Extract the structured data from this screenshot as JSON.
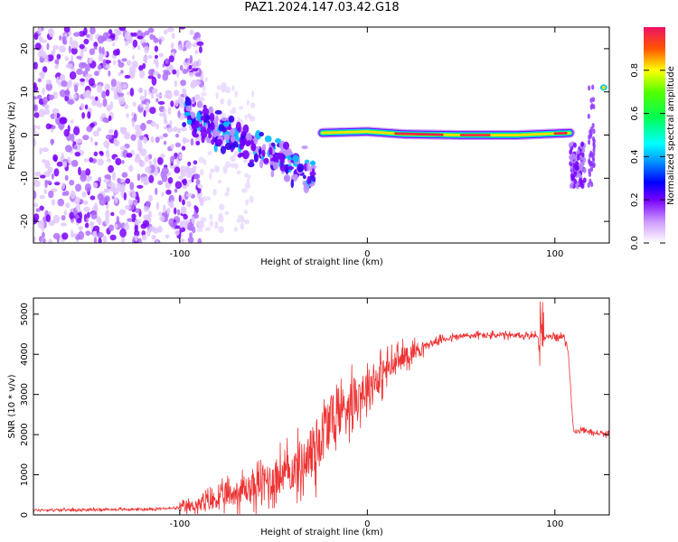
{
  "title": "PAZ1.2024.147.03.42.G18",
  "chart_data": [
    {
      "type": "heatmap",
      "xlabel": "Height of straight line (km)",
      "ylabel": "Frequency (Hz)",
      "xlim": [
        -178,
        129
      ],
      "ylim": [
        -25,
        25
      ],
      "x_ticks": [
        -100,
        0,
        100
      ],
      "y_ticks": [
        -20,
        -10,
        0,
        10,
        20
      ],
      "colorbar": {
        "label": "Normalized spectral amplitude",
        "range": [
          0,
          1
        ],
        "ticks": [
          "0.0",
          "0.2",
          "0.4",
          "0.6",
          "0.8"
        ]
      },
      "features": [
        {
          "region": "scattered noise",
          "x_range": [
            -178,
            -88
          ],
          "freq_range": [
            -25,
            25
          ],
          "amplitude": 0.1
        },
        {
          "region": "diagonal signal",
          "x_range": [
            -98,
            -28
          ],
          "freq_range": [
            -18,
            8
          ],
          "amplitude": 0.3
        },
        {
          "region": "tone",
          "x": [
            -25,
            0,
            20,
            50,
            80,
            108
          ],
          "freq": [
            0.5,
            0.8,
            0.2,
            0.0,
            0.0,
            0.5
          ],
          "amplitude": [
            0.3,
            0.55,
            0.75,
            0.95,
            0.85,
            0.7
          ]
        },
        {
          "region": "drop-off streak",
          "x_range": [
            108,
            124
          ],
          "freq_range": [
            -12,
            12
          ],
          "amplitude": 0.15
        }
      ]
    },
    {
      "type": "line",
      "xlabel": "Height of straight line (km)",
      "ylabel": "SNR (10 * v/v)",
      "xlim": [
        -178,
        129
      ],
      "ylim": [
        0,
        5400
      ],
      "x_ticks": [
        -100,
        0,
        100
      ],
      "y_ticks": [
        0,
        1000,
        2000,
        3000,
        4000,
        5000
      ],
      "series": [
        {
          "color": "#ee3333",
          "x": [
            -178,
            -150,
            -120,
            -100,
            -90,
            -80,
            -70,
            -60,
            -50,
            -40,
            -30,
            -25,
            -20,
            -15,
            -10,
            0,
            10,
            20,
            30,
            40,
            50,
            60,
            70,
            80,
            90,
            93,
            100,
            105,
            107,
            110,
            115,
            120,
            129
          ],
          "y": [
            120,
            130,
            140,
            170,
            250,
            400,
            550,
            700,
            900,
            1100,
            1500,
            1900,
            2300,
            2550,
            2800,
            3200,
            3600,
            3950,
            4200,
            4380,
            4450,
            4480,
            4470,
            4460,
            4480,
            4400,
            4450,
            4430,
            4100,
            2050,
            2100,
            2050,
            2000
          ]
        }
      ]
    }
  ]
}
